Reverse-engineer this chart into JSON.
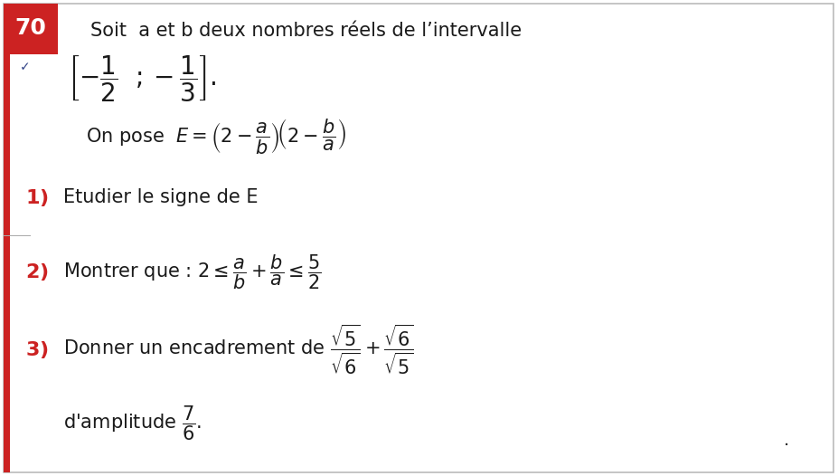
{
  "background_color": "#f5f3f0",
  "border_color": "#c8c8c8",
  "red_accent": "#cc2222",
  "text_color": "#1a1a1a",
  "bold_number_color": "#cc2222",
  "number_box_text": "70",
  "title_line": "Soit  a et b deux nombres réels de l’intervalle",
  "fig_width": 9.27,
  "fig_height": 5.26,
  "dpi": 100
}
